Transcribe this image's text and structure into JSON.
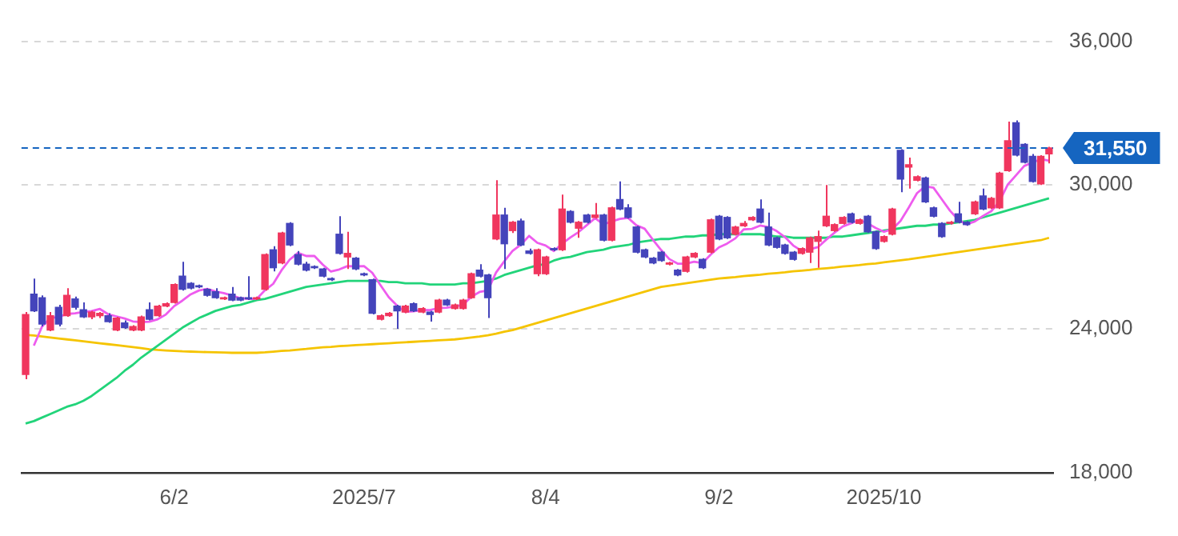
{
  "chart_data": {
    "type": "candlestick",
    "categories": [
      null,
      null,
      null,
      null,
      null,
      null,
      null,
      null,
      null,
      null,
      null,
      null,
      null,
      null,
      null,
      null,
      null,
      null,
      "6/2",
      null,
      null,
      null,
      null,
      null,
      null,
      null,
      null,
      null,
      null,
      null,
      null,
      null,
      null,
      null,
      null,
      null,
      null,
      null,
      null,
      null,
      null,
      "2025/7",
      null,
      null,
      null,
      null,
      null,
      null,
      null,
      null,
      null,
      null,
      null,
      null,
      null,
      null,
      null,
      null,
      null,
      null,
      null,
      null,
      null,
      "8/4",
      null,
      null,
      null,
      null,
      null,
      null,
      null,
      null,
      null,
      null,
      null,
      null,
      null,
      null,
      null,
      null,
      null,
      null,
      null,
      null,
      "9/2",
      null,
      null,
      null,
      null,
      null,
      null,
      null,
      null,
      null,
      null,
      null,
      null,
      null,
      null,
      null,
      null,
      null,
      null,
      null,
      "2025/10",
      null,
      null,
      null,
      null,
      null,
      null,
      null,
      null,
      null,
      null,
      null,
      null,
      null,
      null,
      null,
      null,
      null,
      null,
      null,
      null
    ],
    "ohlc": [
      [
        22100,
        24700,
        21900,
        24600
      ],
      [
        25450,
        26100,
        24700,
        24750
      ],
      [
        25300,
        25400,
        24100,
        24200
      ],
      [
        23950,
        24700,
        23900,
        24550
      ],
      [
        24900,
        25000,
        24100,
        24200
      ],
      [
        24550,
        25700,
        24500,
        25400
      ],
      [
        25250,
        25350,
        24800,
        24900
      ],
      [
        24800,
        25100,
        24450,
        24500
      ],
      [
        24500,
        24750,
        24400,
        24700
      ],
      [
        24550,
        24700,
        24450,
        24650
      ],
      [
        24550,
        24650,
        24250,
        24300
      ],
      [
        23950,
        24500,
        23900,
        24450
      ],
      [
        24250,
        24350,
        24000,
        24050
      ],
      [
        23950,
        24150,
        23900,
        24100
      ],
      [
        23950,
        24550,
        23900,
        24500
      ],
      [
        24800,
        25100,
        24350,
        24400
      ],
      [
        24550,
        25000,
        24500,
        24950
      ],
      [
        24950,
        25100,
        24900,
        25050
      ],
      [
        25100,
        25900,
        25050,
        25850
      ],
      [
        26200,
        26800,
        25600,
        25650
      ],
      [
        25900,
        25950,
        25650,
        25700
      ],
      [
        25800,
        25850,
        25700,
        25750
      ],
      [
        25650,
        25700,
        25350,
        25400
      ],
      [
        25550,
        25700,
        25250,
        25300
      ],
      [
        25250,
        25350,
        25200,
        25300
      ],
      [
        25450,
        25750,
        25150,
        25200
      ],
      [
        25300,
        25350,
        25150,
        25200
      ],
      [
        25300,
        26200,
        25200,
        25250
      ],
      [
        25250,
        25350,
        25200,
        25300
      ],
      [
        25650,
        27150,
        25600,
        27100
      ],
      [
        27300,
        27450,
        26400,
        26550
      ],
      [
        26750,
        28050,
        26700,
        28000
      ],
      [
        28400,
        28450,
        27450,
        27500
      ],
      [
        27100,
        27250,
        26650,
        26700
      ],
      [
        26700,
        26800,
        26400,
        26450
      ],
      [
        26600,
        26650,
        26500,
        26550
      ],
      [
        26500,
        26550,
        26150,
        26200
      ],
      [
        26100,
        26150,
        26000,
        26050
      ],
      [
        27950,
        28700,
        27100,
        27150
      ],
      [
        27000,
        28050,
        26500,
        27150
      ],
      [
        26950,
        27000,
        26450,
        26500
      ],
      [
        26300,
        26350,
        26200,
        26250
      ],
      [
        26050,
        26100,
        24600,
        24650
      ],
      [
        24400,
        24600,
        24350,
        24550
      ],
      [
        24550,
        24700,
        24500,
        24650
      ],
      [
        24950,
        25000,
        24000,
        24750
      ],
      [
        24700,
        25000,
        24650,
        24950
      ],
      [
        25050,
        25100,
        24700,
        24750
      ],
      [
        24700,
        24900,
        24650,
        24850
      ],
      [
        24700,
        24750,
        24300,
        24600
      ],
      [
        24700,
        25250,
        24650,
        25200
      ],
      [
        25200,
        25250,
        24950,
        25000
      ],
      [
        24850,
        25050,
        24800,
        25000
      ],
      [
        24850,
        25250,
        24800,
        25200
      ],
      [
        25300,
        26350,
        25250,
        26300
      ],
      [
        26450,
        26700,
        26150,
        26200
      ],
      [
        26250,
        26300,
        24450,
        25300
      ],
      [
        27750,
        30200,
        27700,
        28750
      ],
      [
        28750,
        29050,
        26500,
        27550
      ],
      [
        28100,
        28500,
        28000,
        28450
      ],
      [
        28500,
        28600,
        27450,
        27500
      ],
      [
        27250,
        27350,
        27100,
        27150
      ],
      [
        26300,
        27350,
        26200,
        27300
      ],
      [
        26300,
        27050,
        26250,
        27000
      ],
      [
        27350,
        27400,
        27250,
        27300
      ],
      [
        27300,
        29600,
        27250,
        29000
      ],
      [
        28900,
        28950,
        28400,
        28450
      ],
      [
        28200,
        28500,
        27800,
        28450
      ],
      [
        28750,
        28800,
        28400,
        28450
      ],
      [
        28650,
        29250,
        28600,
        28750
      ],
      [
        28750,
        28800,
        27650,
        27700
      ],
      [
        27700,
        29100,
        27650,
        29050
      ],
      [
        29400,
        30150,
        28950,
        29000
      ],
      [
        29050,
        29200,
        28600,
        28650
      ],
      [
        28250,
        28300,
        27150,
        27200
      ],
      [
        27300,
        27350,
        26950,
        27000
      ],
      [
        26950,
        27000,
        26700,
        26750
      ],
      [
        27200,
        27250,
        26800,
        26850
      ],
      [
        26700,
        26800,
        26650,
        26750
      ],
      [
        26450,
        26500,
        26200,
        26250
      ],
      [
        26400,
        27050,
        26350,
        27000
      ],
      [
        27000,
        27200,
        26950,
        27150
      ],
      [
        26900,
        26950,
        26500,
        26550
      ],
      [
        27200,
        28600,
        27150,
        28550
      ],
      [
        28700,
        28750,
        27700,
        27750
      ],
      [
        28650,
        28700,
        27750,
        27800
      ],
      [
        27950,
        28300,
        27900,
        28250
      ],
      [
        28300,
        28500,
        28250,
        28400
      ],
      [
        28550,
        28700,
        28500,
        28650
      ],
      [
        29000,
        29400,
        28400,
        28450
      ],
      [
        28250,
        28850,
        27450,
        27500
      ],
      [
        27800,
        27850,
        27350,
        27400
      ],
      [
        27500,
        27550,
        27100,
        27150
      ],
      [
        27200,
        27250,
        26850,
        26900
      ],
      [
        27150,
        27400,
        27100,
        27350
      ],
      [
        27200,
        27850,
        26750,
        27800
      ],
      [
        27650,
        28100,
        26550,
        27850
      ],
      [
        28300,
        30000,
        28250,
        28700
      ],
      [
        28100,
        28400,
        28050,
        28350
      ],
      [
        28400,
        28700,
        28350,
        28650
      ],
      [
        28800,
        28850,
        28400,
        28450
      ],
      [
        28400,
        28600,
        28350,
        28550
      ],
      [
        28700,
        28750,
        28000,
        28050
      ],
      [
        28050,
        28100,
        27300,
        27350
      ],
      [
        27650,
        27900,
        27600,
        27850
      ],
      [
        27950,
        29050,
        27900,
        29000
      ],
      [
        31450,
        31500,
        29700,
        30250
      ],
      [
        30750,
        31150,
        29850,
        30850
      ],
      [
        30200,
        30400,
        30150,
        30350
      ],
      [
        30300,
        30350,
        29250,
        29300
      ],
      [
        29050,
        29100,
        28650,
        28700
      ],
      [
        28400,
        28450,
        27800,
        27850
      ],
      [
        28400,
        28500,
        28350,
        28450
      ],
      [
        28800,
        29300,
        28400,
        28450
      ],
      [
        28450,
        28500,
        28300,
        28350
      ],
      [
        28800,
        29350,
        28750,
        29300
      ],
      [
        29550,
        29850,
        28950,
        29000
      ],
      [
        29050,
        29500,
        29000,
        29450
      ],
      [
        29050,
        30550,
        29000,
        30500
      ],
      [
        30600,
        32650,
        30550,
        31850
      ],
      [
        32600,
        32700,
        31200,
        31250
      ],
      [
        31700,
        31750,
        30900,
        30950
      ],
      [
        31200,
        31300,
        30100,
        30150
      ],
      [
        30050,
        31250,
        30000,
        31200
      ],
      [
        31300,
        31600,
        30900,
        31550
      ]
    ],
    "colors": [
      "#f0365e",
      "#4444bb",
      "#4444bb",
      "#f0365e",
      "#4444bb",
      "#f0365e",
      "#4444bb",
      "#4444bb",
      "#f0365e",
      "#f0365e",
      "#4444bb",
      "#f0365e",
      "#4444bb",
      "#f0365e",
      "#f0365e",
      "#4444bb",
      "#f0365e",
      "#f0365e",
      "#f0365e",
      "#4444bb",
      "#4444bb",
      "#4444bb",
      "#4444bb",
      "#4444bb",
      "#f0365e",
      "#4444bb",
      "#4444bb",
      "#4444bb",
      "#f0365e",
      "#f0365e",
      "#4444bb",
      "#f0365e",
      "#4444bb",
      "#4444bb",
      "#4444bb",
      "#4444bb",
      "#4444bb",
      "#4444bb",
      "#4444bb",
      "#f0365e",
      "#4444bb",
      "#4444bb",
      "#4444bb",
      "#f0365e",
      "#f0365e",
      "#4444bb",
      "#f0365e",
      "#4444bb",
      "#f0365e",
      "#4444bb",
      "#f0365e",
      "#4444bb",
      "#f0365e",
      "#f0365e",
      "#f0365e",
      "#4444bb",
      "#4444bb",
      "#f0365e",
      "#4444bb",
      "#f0365e",
      "#4444bb",
      "#4444bb",
      "#f0365e",
      "#f0365e",
      "#4444bb",
      "#f0365e",
      "#4444bb",
      "#f0365e",
      "#4444bb",
      "#f0365e",
      "#4444bb",
      "#f0365e",
      "#4444bb",
      "#4444bb",
      "#4444bb",
      "#4444bb",
      "#4444bb",
      "#4444bb",
      "#f0365e",
      "#4444bb",
      "#f0365e",
      "#f0365e",
      "#4444bb",
      "#f0365e",
      "#4444bb",
      "#4444bb",
      "#f0365e",
      "#f0365e",
      "#f0365e",
      "#4444bb",
      "#4444bb",
      "#4444bb",
      "#4444bb",
      "#4444bb",
      "#f0365e",
      "#f0365e",
      "#f0365e",
      "#f0365e",
      "#f0365e",
      "#f0365e",
      "#4444bb",
      "#f0365e",
      "#4444bb",
      "#4444bb",
      "#f0365e",
      "#f0365e",
      "#4444bb",
      "#f0365e",
      "#f0365e",
      "#4444bb",
      "#4444bb",
      "#4444bb",
      "#f0365e",
      "#4444bb",
      "#4444bb",
      "#f0365e",
      "#4444bb",
      "#f0365e",
      "#f0365e",
      "#f0365e",
      "#4444bb",
      "#4444bb",
      "#4444bb",
      "#f0365e",
      "#f0365e"
    ],
    "series": [
      {
        "type": "line",
        "color": "#ee5cee",
        "values": [
          null,
          23300,
          24100,
          24450,
          24500,
          24620,
          24650,
          24710,
          24740,
          24830,
          24610,
          24520,
          24430,
          24310,
          24280,
          24300,
          24400,
          24600,
          24950,
          25180,
          25440,
          25600,
          25670,
          25560,
          25490,
          25390,
          25280,
          25250,
          25250,
          25610,
          25880,
          26440,
          26890,
          27170,
          27040,
          27040,
          26680,
          26390,
          26480,
          26620,
          26610,
          26620,
          26340,
          25820,
          25320,
          24970,
          24710,
          24730,
          24790,
          24780,
          24870,
          24880,
          24930,
          25000,
          25340,
          25540,
          25600,
          26350,
          26820,
          27250,
          27510,
          27880,
          27590,
          27480,
          27250,
          27550,
          27810,
          28040,
          28330,
          28620,
          28360,
          28480,
          28590,
          28630,
          28320,
          28180,
          27720,
          27290,
          26910,
          26720,
          26720,
          26800,
          26740,
          27100,
          27400,
          27560,
          27780,
          28150,
          28170,
          28310,
          28250,
          28080,
          27830,
          27480,
          27260,
          27320,
          27410,
          27720,
          28010,
          28270,
          28400,
          28540,
          28410,
          28210,
          28050,
          28160,
          28500,
          29060,
          29660,
          29950,
          29890,
          29410,
          28930,
          28550,
          28360,
          28480,
          28710,
          28910,
          29320,
          30020,
          30410,
          30800,
          30940,
          31080,
          31020
        ]
      },
      {
        "type": "line",
        "color": "#22d47a",
        "values": [
          20050,
          20150,
          20300,
          20450,
          20600,
          20750,
          20850,
          21000,
          21200,
          21450,
          21700,
          21950,
          22250,
          22500,
          22800,
          23050,
          23300,
          23550,
          23800,
          24050,
          24250,
          24450,
          24600,
          24750,
          24850,
          24950,
          25000,
          25100,
          25200,
          25250,
          25350,
          25450,
          25550,
          25650,
          25750,
          25800,
          25850,
          25900,
          25950,
          26000,
          26000,
          26000,
          26000,
          26000,
          25950,
          25950,
          25900,
          25900,
          25900,
          25850,
          25850,
          25850,
          25850,
          25900,
          25900,
          25950,
          26000,
          26100,
          26250,
          26350,
          26450,
          26550,
          26650,
          26700,
          26850,
          26950,
          27000,
          27100,
          27200,
          27250,
          27300,
          27400,
          27450,
          27500,
          27600,
          27650,
          27700,
          27750,
          27750,
          27800,
          27850,
          27850,
          27900,
          27900,
          27950,
          27950,
          27950,
          27950,
          27950,
          27950,
          27900,
          27850,
          27850,
          27800,
          27800,
          27800,
          27800,
          27800,
          27850,
          27850,
          27900,
          27950,
          28000,
          28050,
          28100,
          28150,
          28200,
          28250,
          28300,
          28300,
          28350,
          28350,
          28400,
          28450,
          28500,
          28550,
          28650,
          28750,
          28850,
          28950,
          29050,
          29150,
          29250,
          29350,
          29450
        ]
      },
      {
        "type": "line",
        "color": "#f5c400",
        "values": [
          23750,
          23720,
          23680,
          23640,
          23600,
          23560,
          23520,
          23480,
          23440,
          23400,
          23360,
          23320,
          23280,
          23240,
          23200,
          23150,
          23120,
          23100,
          23080,
          23060,
          23050,
          23040,
          23030,
          23020,
          23010,
          23000,
          23000,
          23000,
          23000,
          23020,
          23050,
          23080,
          23100,
          23130,
          23160,
          23200,
          23230,
          23250,
          23280,
          23300,
          23320,
          23340,
          23360,
          23380,
          23400,
          23420,
          23440,
          23460,
          23480,
          23500,
          23520,
          23540,
          23560,
          23600,
          23640,
          23680,
          23730,
          23800,
          23880,
          23950,
          24050,
          24150,
          24250,
          24350,
          24450,
          24550,
          24650,
          24750,
          24850,
          24950,
          25050,
          25150,
          25250,
          25350,
          25450,
          25550,
          25650,
          25750,
          25800,
          25850,
          25900,
          25950,
          26000,
          26050,
          26100,
          26130,
          26160,
          26200,
          26230,
          26260,
          26300,
          26330,
          26360,
          26400,
          26430,
          26460,
          26500,
          26530,
          26560,
          26600,
          26630,
          26660,
          26700,
          26730,
          26780,
          26820,
          26860,
          26900,
          26950,
          27000,
          27050,
          27100,
          27150,
          27200,
          27250,
          27300,
          27350,
          27400,
          27450,
          27500,
          27550,
          27600,
          27650,
          27700,
          27800
        ]
      }
    ],
    "ylim": [
      18000,
      36000
    ],
    "yticks": [
      {
        "value": 18000,
        "label": "18,000"
      },
      {
        "value": 24000,
        "label": "24,000"
      },
      {
        "value": 30000,
        "label": "30,000"
      },
      {
        "value": 36000,
        "label": "36,000"
      }
    ],
    "ref_lines": [
      {
        "axis": "y",
        "value": 31550,
        "label": "31,550",
        "color": "#1565c0",
        "line_style": "dashed"
      }
    ],
    "grid": "y",
    "marker": "none",
    "line_style": "solid"
  }
}
